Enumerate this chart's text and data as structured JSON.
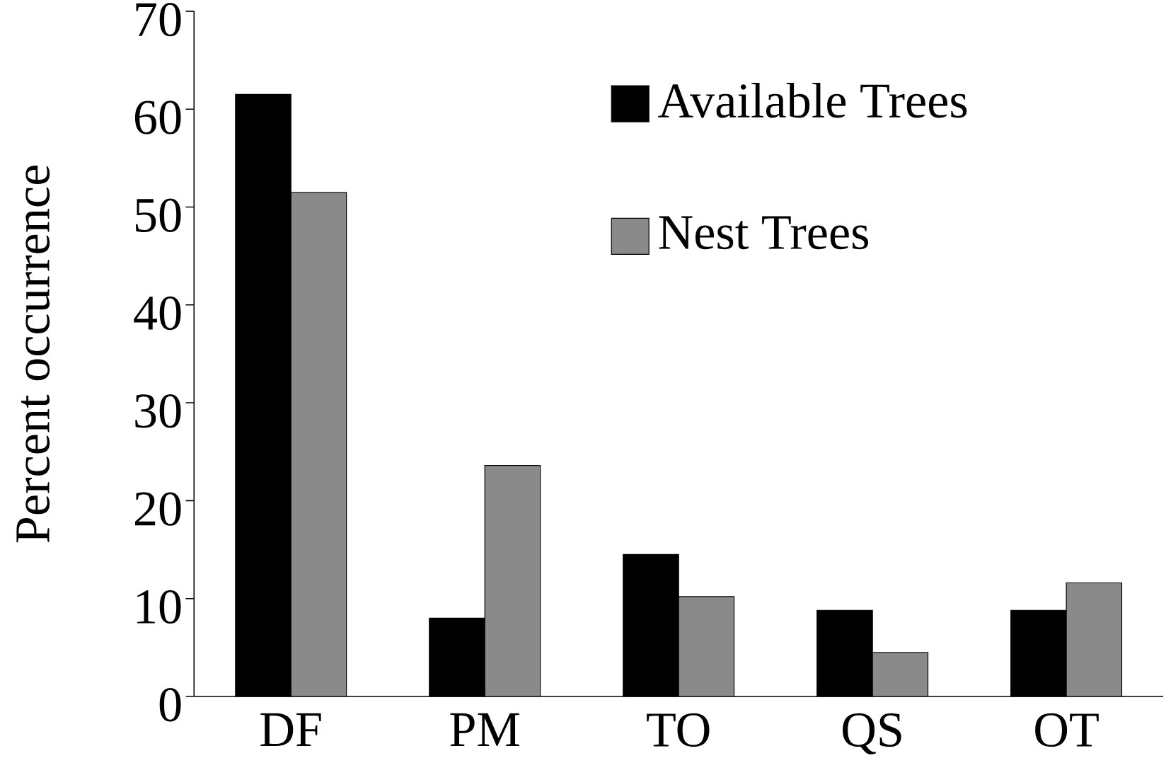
{
  "chart_data": {
    "type": "bar",
    "ylabel": "Percent occurrence",
    "categories": [
      "DF",
      "PM",
      "TO",
      "QS",
      "OT"
    ],
    "series": [
      {
        "name": "Available Trees",
        "color": "#000000",
        "values": [
          61.5,
          8.0,
          14.5,
          8.8,
          8.8
        ]
      },
      {
        "name": "Nest Trees",
        "color": "#8a8a8a",
        "values": [
          51.5,
          23.6,
          10.2,
          4.5,
          11.6
        ]
      }
    ],
    "ylim": [
      0,
      70
    ],
    "yticks": [
      0,
      10,
      20,
      30,
      40,
      50,
      60,
      70
    ],
    "legend": "top right"
  }
}
